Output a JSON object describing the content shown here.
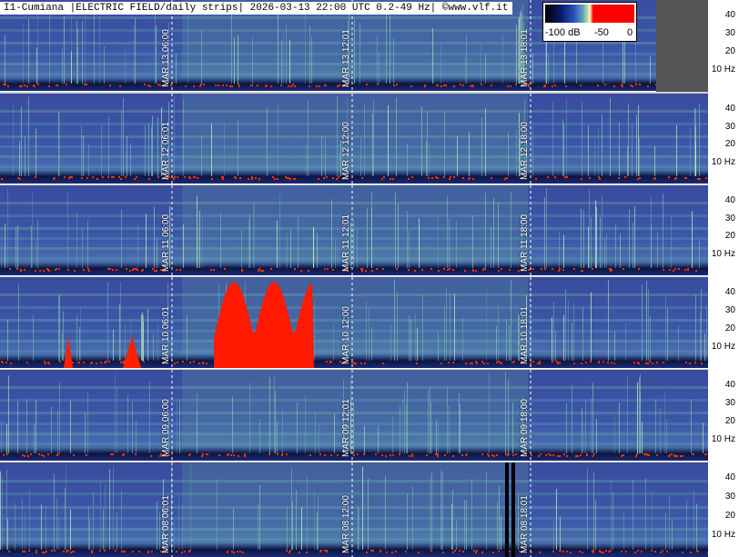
{
  "header": {
    "title": "I1-Cumiana |ELECTRIC FIELD/daily strips| 2026-03-13 22:00 UTC 0.2-49 Hz| ©www.vlf.it"
  },
  "colorbar": {
    "min_label": "-100 dB",
    "mid_label": "-50",
    "max_label": "0"
  },
  "scale_ticks": [
    "40",
    "30",
    "20",
    "10 Hz"
  ],
  "strips": [
    {
      "day": "MAR 13",
      "labels": [
        "MAR 13  06:00",
        "MAR 13  12:01",
        "MAR 13  18:01"
      ]
    },
    {
      "day": "MAR 12",
      "labels": [
        "MAR 12  06:01",
        "MAR 12  12:00",
        "MAR 12  18:00"
      ]
    },
    {
      "day": "MAR 11",
      "labels": [
        "MAR 11  06:00",
        "MAR 11  12:01",
        "MAR 11  18:00"
      ]
    },
    {
      "day": "MAR 10",
      "labels": [
        "MAR 10  06:01",
        "MAR 10  12:00",
        "MAR 10  18:01"
      ]
    },
    {
      "day": "MAR 09",
      "labels": [
        "MAR 09  06:00",
        "MAR 09  12:01",
        "MAR 09  18:00"
      ]
    },
    {
      "day": "MAR 08",
      "labels": [
        "MAR 08  06:01",
        "MAR 08  12:00",
        "MAR 08  18:01"
      ]
    }
  ],
  "colors": {
    "background_blue": "#3a4fa0",
    "band_green": "#7ec8a0",
    "burst_red": "#ff1a00"
  }
}
